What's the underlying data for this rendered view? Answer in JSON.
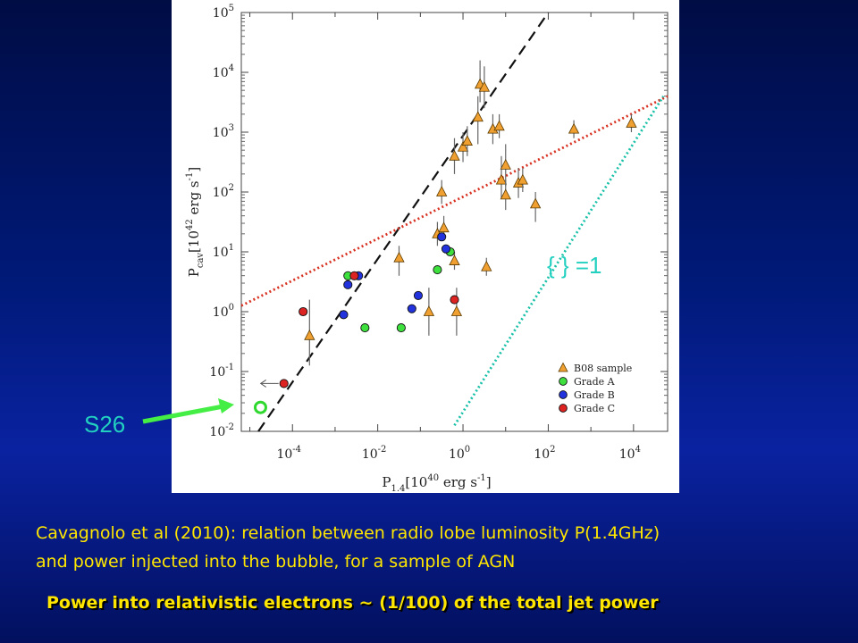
{
  "chart_data": {
    "type": "scatter",
    "xscale": "log",
    "yscale": "log",
    "xlabel": "P",
    "xlabel_sub": "1.4",
    "xlabel_unit": "[10",
    "xlabel_exp": "40",
    "xlabel_unit2": " erg s",
    "xlabel_unit_exp": "-1",
    "xlabel_close": "]",
    "ylabel": "P",
    "ylabel_sub": "cav",
    "ylabel_unit": "[10",
    "ylabel_exp": "42",
    "ylabel_unit2": " erg s",
    "ylabel_unit_exp": "-1",
    "ylabel_close": "]",
    "xlim_log": [
      -5.2,
      4.8
    ],
    "ylim_log": [
      -2,
      5
    ],
    "x_ticks": [
      {
        "mant": "10",
        "exp": "-4",
        "log": -4
      },
      {
        "mant": "10",
        "exp": "-2",
        "log": -2
      },
      {
        "mant": "10",
        "exp": "0",
        "log": 0
      },
      {
        "mant": "10",
        "exp": "2",
        "log": 2
      },
      {
        "mant": "10",
        "exp": "4",
        "log": 4
      }
    ],
    "y_ticks": [
      {
        "mant": "10",
        "exp": "-2",
        "log": -2
      },
      {
        "mant": "10",
        "exp": "-1",
        "log": -1
      },
      {
        "mant": "10",
        "exp": "0",
        "log": 0
      },
      {
        "mant": "10",
        "exp": "1",
        "log": 1
      },
      {
        "mant": "10",
        "exp": "2",
        "log": 2
      },
      {
        "mant": "10",
        "exp": "3",
        "log": 3
      },
      {
        "mant": "10",
        "exp": "4",
        "log": 4
      },
      {
        "mant": "10",
        "exp": "5",
        "log": 5
      }
    ],
    "legend": {
      "placement": "bottom-right",
      "entries": [
        {
          "label": "B08 sample",
          "marker": "triangle",
          "color": "#f0a030"
        },
        {
          "label": "Grade A",
          "marker": "circle",
          "color": "#3ee03e"
        },
        {
          "label": "Grade B",
          "marker": "circle",
          "color": "#2233dd"
        },
        {
          "label": "Grade C",
          "marker": "circle",
          "color": "#dd2222"
        }
      ]
    },
    "lines": [
      {
        "style": "dashed",
        "color": "#111111",
        "points_log": [
          [
            -4.8,
            -2.0
          ],
          [
            2.0,
            5.0
          ]
        ]
      },
      {
        "style": "dotted",
        "color": "#d83020",
        "points_log": [
          [
            -5.2,
            0.1
          ],
          [
            4.8,
            3.6
          ]
        ]
      },
      {
        "style": "dotted",
        "color": "#18c0a8",
        "points_log": [
          [
            -0.2,
            -1.9
          ],
          [
            4.7,
            3.6
          ]
        ]
      }
    ],
    "series": [
      {
        "name": "B08 sample",
        "marker": "triangle",
        "color": "#f0a030",
        "points_log": [
          [
            -3.6,
            -0.4,
            -0.9,
            0.2
          ],
          [
            -1.5,
            0.9,
            0.6,
            1.1
          ],
          [
            -0.8,
            0.0,
            -0.4,
            0.4
          ],
          [
            -0.6,
            1.3,
            1.1,
            1.5
          ],
          [
            -0.5,
            2.0,
            1.8,
            2.2
          ],
          [
            -0.45,
            1.4,
            1.2,
            1.6
          ],
          [
            -0.2,
            0.85,
            0.7,
            1.0
          ],
          [
            -0.2,
            2.6,
            2.3,
            2.9
          ],
          [
            0.0,
            2.75,
            2.5,
            3.0
          ],
          [
            0.1,
            2.85,
            2.6,
            3.1
          ],
          [
            0.35,
            3.25,
            2.8,
            3.6
          ],
          [
            0.4,
            3.8,
            3.5,
            4.2
          ],
          [
            0.5,
            3.75,
            3.4,
            4.1
          ],
          [
            0.55,
            0.75,
            0.6,
            0.9
          ],
          [
            0.7,
            3.05,
            2.8,
            3.3
          ],
          [
            0.85,
            3.1,
            2.9,
            3.3
          ],
          [
            0.9,
            2.2,
            1.9,
            2.6
          ],
          [
            1.0,
            2.45,
            2.1,
            2.8
          ],
          [
            1.0,
            1.95,
            1.7,
            2.2
          ],
          [
            1.3,
            2.15,
            1.9,
            2.4
          ],
          [
            1.4,
            2.2,
            2.0,
            2.4
          ],
          [
            1.7,
            1.8,
            1.5,
            2.0
          ],
          [
            2.6,
            3.05,
            2.9,
            3.2
          ],
          [
            3.95,
            3.15,
            3.0,
            3.3
          ],
          [
            -0.15,
            0.0,
            -0.4,
            0.4
          ]
        ]
      },
      {
        "name": "Grade A",
        "marker": "circle",
        "color": "#3ee03e",
        "points_log": [
          [
            -2.7,
            0.6
          ],
          [
            -2.3,
            -0.27
          ],
          [
            -1.45,
            -0.27
          ],
          [
            -0.6,
            0.7
          ],
          [
            -0.3,
            1.0
          ]
        ]
      },
      {
        "name": "Grade B",
        "marker": "circle",
        "color": "#2233dd",
        "points_log": [
          [
            -2.8,
            -0.05
          ],
          [
            -2.7,
            0.45
          ],
          [
            -2.45,
            0.6
          ],
          [
            -1.2,
            0.05
          ],
          [
            -1.05,
            0.27
          ],
          [
            -0.5,
            1.25
          ],
          [
            -0.4,
            1.05
          ]
        ]
      },
      {
        "name": "Grade C",
        "marker": "circle",
        "color": "#dd2222",
        "points_log": [
          [
            -3.75,
            0.0
          ],
          [
            -2.55,
            0.6
          ],
          [
            -0.2,
            0.2
          ],
          [
            -4.2,
            -1.2
          ]
        ]
      }
    ],
    "highlight_point_log": [
      -4.75,
      -1.6
    ]
  },
  "annotations": {
    "s26_label": "S26",
    "alpha_label": "{ } =1"
  },
  "caption": {
    "line1": "Cavagnolo et al (2010): relation between radio lobe luminosity  P(1.4GHz)",
    "line2": "and power injected into the bubble, for a sample of AGN",
    "highlight": "Power into relativistic electrons ~ (1/100) of the total jet power"
  }
}
